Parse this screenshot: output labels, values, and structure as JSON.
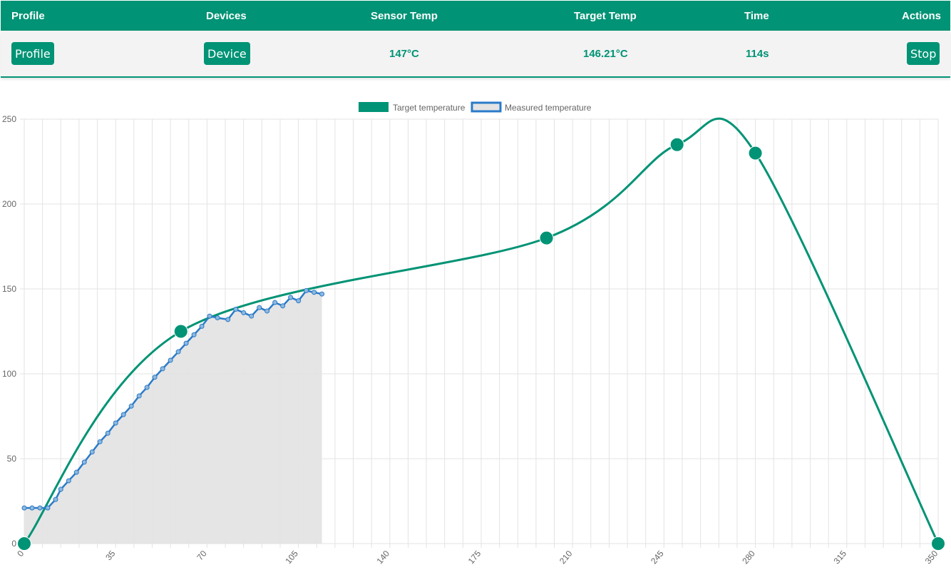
{
  "header": {
    "profile": "Profile",
    "devices": "Devices",
    "sensor_temp": "Sensor Temp",
    "target_temp": "Target Temp",
    "time": "Time",
    "actions": "Actions"
  },
  "status": {
    "profile_button": "Profile",
    "device_button": "Device",
    "sensor_temp_value": "147°C",
    "target_temp_value": "146.21°C",
    "time_value": "114s",
    "stop_button": "Stop"
  },
  "colors": {
    "accent": "#009375",
    "measured": "#2a7bc8",
    "fill": "#e4e4e4"
  },
  "chart_data": {
    "type": "line",
    "xlim": [
      0,
      350
    ],
    "ylim": [
      0,
      250
    ],
    "xticks": [
      "0",
      "35",
      "70",
      "105",
      "140",
      "175",
      "210",
      "245",
      "280",
      "315",
      "350"
    ],
    "yticks": [
      "0",
      "50",
      "100",
      "150",
      "200",
      "250"
    ],
    "legend_position": "top-center",
    "grid": true,
    "series": [
      {
        "name": "Target temperature",
        "color": "#009375",
        "smooth": true,
        "points": [
          [
            0,
            0
          ],
          [
            60,
            125
          ],
          [
            200,
            180
          ],
          [
            250,
            235
          ],
          [
            280,
            230
          ],
          [
            350,
            0
          ]
        ]
      },
      {
        "name": "Measured temperature",
        "color": "#2a7bc8",
        "fill": "#e4e4e4",
        "points": [
          [
            0,
            21
          ],
          [
            3,
            21
          ],
          [
            6,
            21
          ],
          [
            9,
            21
          ],
          [
            12,
            26
          ],
          [
            14,
            32
          ],
          [
            17,
            37
          ],
          [
            20,
            42
          ],
          [
            23,
            48
          ],
          [
            26,
            54
          ],
          [
            29,
            60
          ],
          [
            32,
            65
          ],
          [
            35,
            71
          ],
          [
            38,
            76
          ],
          [
            41,
            81
          ],
          [
            44,
            87
          ],
          [
            47,
            92
          ],
          [
            50,
            98
          ],
          [
            53,
            103
          ],
          [
            56,
            108
          ],
          [
            59,
            113
          ],
          [
            62,
            118
          ],
          [
            65,
            123
          ],
          [
            68,
            128
          ],
          [
            71,
            134
          ],
          [
            74,
            133
          ],
          [
            78,
            132
          ],
          [
            81,
            138
          ],
          [
            84,
            136
          ],
          [
            87,
            134
          ],
          [
            90,
            139
          ],
          [
            93,
            137
          ],
          [
            96,
            142
          ],
          [
            99,
            140
          ],
          [
            102,
            145
          ],
          [
            105,
            143
          ],
          [
            108,
            149
          ],
          [
            111,
            148
          ],
          [
            114,
            147
          ]
        ]
      }
    ]
  }
}
